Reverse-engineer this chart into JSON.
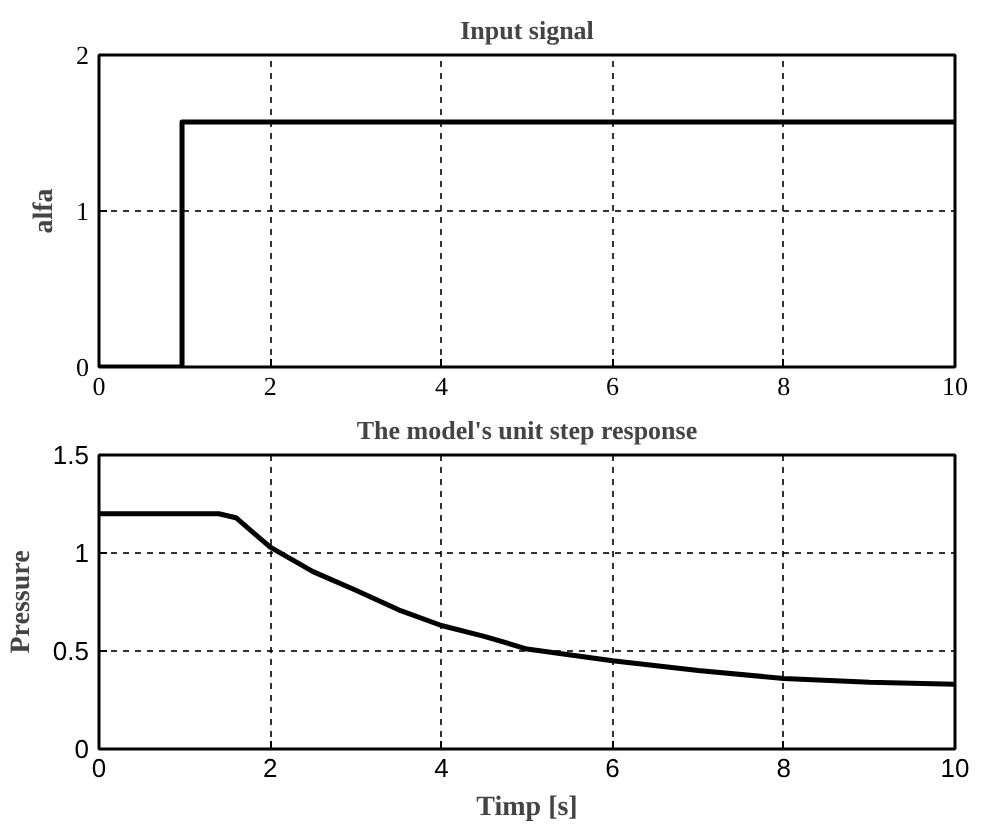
{
  "chart_data": [
    {
      "type": "line",
      "title": "Input signal",
      "ylabel": "alfa",
      "x": [
        0,
        0.97,
        0.97,
        10
      ],
      "series": [
        {
          "color": "#000000",
          "values": [
            0,
            0,
            1.57,
            1.57
          ]
        }
      ],
      "xlim": [
        0,
        10
      ],
      "ylim": [
        0,
        2
      ],
      "xticks": [
        0,
        2,
        4,
        6,
        8,
        10
      ],
      "yticks": [
        0,
        1,
        2
      ],
      "grid": true,
      "line_style": "solid"
    },
    {
      "type": "line",
      "title": "The model's unit step response",
      "xlabel": "Timp [s]",
      "ylabel": "Pressure",
      "x": [
        0,
        1.4,
        1.6,
        2,
        2.5,
        3,
        3.5,
        4,
        4.5,
        5,
        6,
        7,
        8,
        9,
        10
      ],
      "series": [
        {
          "color": "#000000",
          "values": [
            1.2,
            1.2,
            1.18,
            1.03,
            0.905,
            0.81,
            0.71,
            0.63,
            0.575,
            0.51,
            0.45,
            0.4,
            0.36,
            0.34,
            0.33
          ]
        }
      ],
      "xlim": [
        0,
        10
      ],
      "ylim": [
        0,
        1.5
      ],
      "xticks": [
        0,
        2,
        4,
        6,
        8,
        10
      ],
      "yticks": [
        0,
        0.5,
        1,
        1.5
      ],
      "grid": true,
      "line_style": "solid"
    }
  ]
}
